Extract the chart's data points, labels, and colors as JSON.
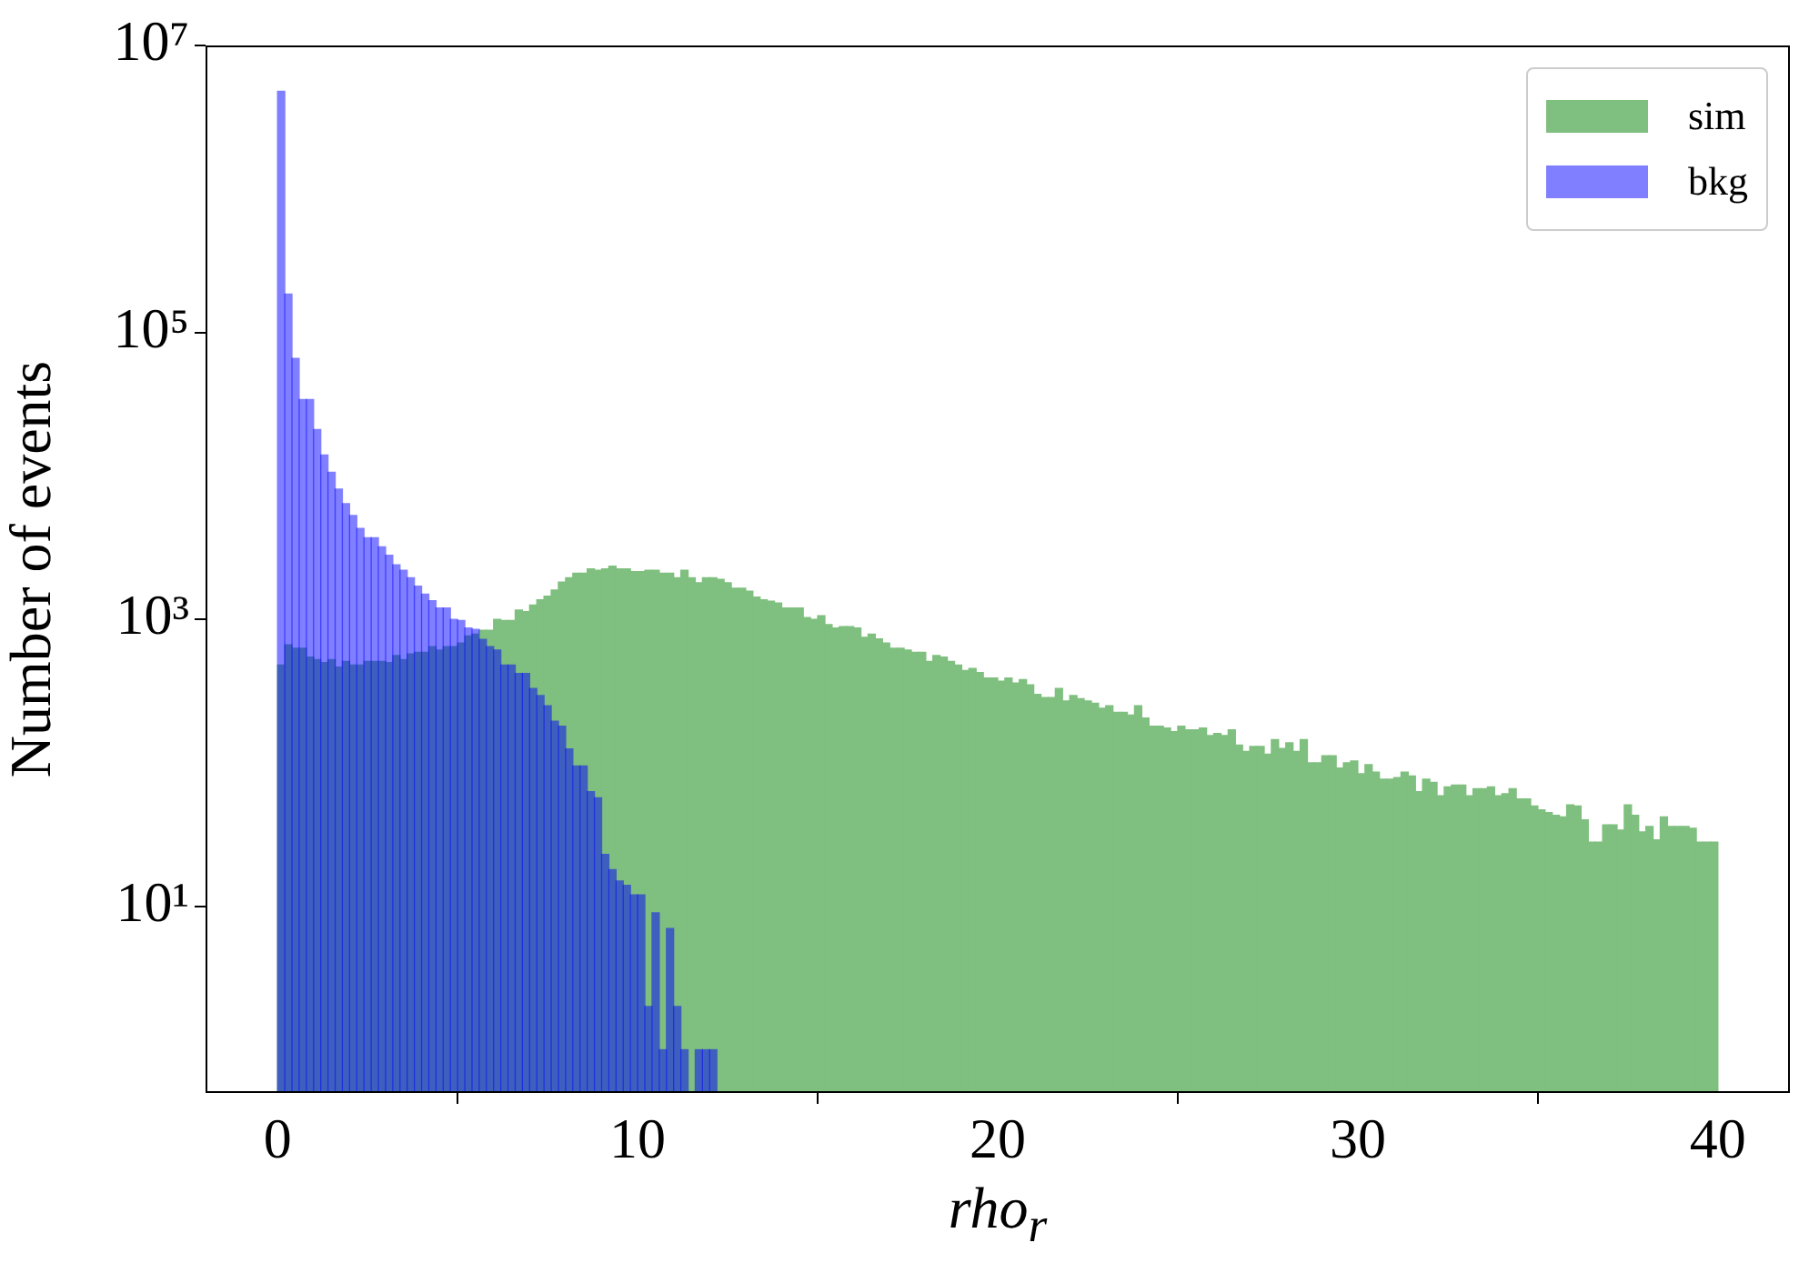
{
  "chart_data": {
    "type": "histogram",
    "xlabel": "rho$_{r}$",
    "ylabel": "Number of events",
    "log": "y",
    "legend": "top right",
    "xlim": [
      -2,
      42
    ],
    "xticks": [
      0,
      10,
      20,
      30,
      40
    ],
    "ylim": [
      0.5,
      10000000
    ],
    "yticks": [
      {
        "value": 10,
        "label": "10¹"
      },
      {
        "value": 1000,
        "label": "10³"
      },
      {
        "value": 100000,
        "label": "10⁵"
      },
      {
        "value": 10000000,
        "label": "10⁷"
      }
    ],
    "bins": [
      0,
      0.2,
      0.4,
      0.6,
      0.8,
      1,
      1.2,
      1.4,
      1.6,
      1.8,
      2,
      2.2,
      2.4,
      2.6,
      2.8,
      3,
      3.2,
      3.4,
      3.6,
      3.8,
      4,
      4.2,
      4.4,
      4.6,
      4.8,
      5,
      5.2,
      5.4,
      5.6,
      5.8,
      6,
      6.2,
      6.4,
      6.6,
      6.8,
      7,
      7.2,
      7.4,
      7.6,
      7.8,
      8,
      8.2,
      8.4,
      8.6,
      8.8,
      9,
      9.2,
      9.4,
      9.6,
      9.8,
      10,
      10.2,
      10.4,
      10.6,
      10.8,
      11,
      11.2,
      11.4,
      11.6,
      11.8,
      12,
      12.2,
      12.4,
      12.6,
      12.8,
      13,
      13.2,
      13.4,
      13.6,
      13.8,
      14,
      14.2,
      14.4,
      14.6,
      14.8,
      15,
      15.2,
      15.4,
      15.6,
      15.8,
      16,
      16.2,
      16.4,
      16.6,
      16.8,
      17,
      17.2,
      17.4,
      17.6,
      17.8,
      18,
      18.2,
      18.4,
      18.6,
      18.8,
      19,
      19.2,
      19.4,
      19.6,
      19.8,
      20,
      20.2,
      20.4,
      20.6,
      20.8,
      21,
      21.2,
      21.4,
      21.6,
      21.8,
      22,
      22.2,
      22.4,
      22.6,
      22.8,
      23,
      23.2,
      23.4,
      23.6,
      23.8,
      24,
      24.2,
      24.4,
      24.6,
      24.8,
      25,
      25.2,
      25.4,
      25.6,
      25.8,
      26,
      26.2,
      26.4,
      26.6,
      26.8,
      27,
      27.2,
      27.4,
      27.6,
      27.8,
      28,
      28.2,
      28.4,
      28.6,
      28.8,
      29,
      29.2,
      29.4,
      29.6,
      29.8,
      30,
      30.2,
      30.4,
      30.6,
      30.8,
      31,
      31.2,
      31.4,
      31.6,
      31.8,
      32,
      32.2,
      32.4,
      32.6,
      32.8,
      33,
      33.2,
      33.4,
      33.6,
      33.8,
      34,
      34.2,
      34.4,
      34.6,
      34.8,
      35,
      35.2,
      35.4,
      35.6,
      35.8,
      36,
      36.2,
      36.4,
      36.6,
      36.8,
      37,
      37.2,
      37.4,
      37.6,
      37.8,
      38,
      38.2,
      38.4,
      38.6,
      38.8,
      39,
      39.2,
      39.4,
      39.6,
      39.8,
      40
    ],
    "series": [
      {
        "name": "sim",
        "color": "#7fbf7f",
        "values": [
          480,
          665,
          630,
          630,
          545,
          525,
          500,
          525,
          465,
          510,
          480,
          480,
          510,
          510,
          510,
          500,
          560,
          525,
          575,
          590,
          590,
          645,
          610,
          645,
          645,
          685,
          765,
          790,
          840,
          840,
          1000,
          980,
          980,
          1160,
          1130,
          1260,
          1370,
          1450,
          1600,
          1820,
          1950,
          2100,
          2100,
          2250,
          2200,
          2250,
          2350,
          2250,
          2250,
          2150,
          2150,
          2200,
          2200,
          2100,
          2100,
          1950,
          2200,
          1950,
          1800,
          1950,
          1950,
          1900,
          1800,
          1650,
          1650,
          1570,
          1430,
          1370,
          1340,
          1300,
          1200,
          1200,
          1200,
          1030,
          1000,
          1060,
          920,
          870,
          890,
          890,
          870,
          750,
          790,
          730,
          685,
          630,
          630,
          610,
          590,
          590,
          510,
          560,
          545,
          510,
          480,
          440,
          455,
          425,
          390,
          390,
          370,
          390,
          360,
          380,
          350,
          300,
          285,
          285,
          330,
          270,
          295,
          280,
          270,
          260,
          240,
          250,
          225,
          225,
          215,
          250,
          205,
          180,
          180,
          175,
          165,
          180,
          170,
          170,
          175,
          155,
          160,
          155,
          170,
          133,
          120,
          130,
          130,
          115,
          145,
          126,
          138,
          120,
          145,
          100,
          100,
          112,
          112,
          92,
          100,
          103,
          84,
          97,
          86,
          77,
          77,
          79,
          86,
          81,
          63,
          77,
          73,
          59,
          68,
          70,
          70,
          59,
          66,
          66,
          68,
          59,
          61,
          66,
          56,
          56,
          50,
          47,
          45,
          43,
          42,
          51,
          50,
          40,
          28,
          28,
          37,
          37,
          34,
          51,
          43,
          33,
          36,
          29,
          42,
          36,
          36,
          36,
          35,
          28,
          28,
          28
        ]
      },
      {
        "name": "bkg",
        "color": "#7f7fff",
        "values": [
          4800000,
          185000,
          66000,
          34000,
          34000,
          21000,
          14000,
          10600,
          8100,
          6400,
          5300,
          4300,
          3700,
          3700,
          3200,
          2800,
          2400,
          2200,
          1950,
          1700,
          1500,
          1350,
          1200,
          1200,
          1000,
          980,
          870,
          850,
          725,
          645,
          610,
          480,
          480,
          420,
          420,
          330,
          295,
          250,
          195,
          180,
          125,
          95,
          95,
          63,
          57,
          23,
          18,
          15,
          14,
          12,
          12,
          2,
          9,
          1,
          7,
          2,
          1,
          null,
          1,
          1,
          1,
          null,
          null,
          null,
          null,
          null,
          null,
          null,
          null,
          null,
          null,
          null,
          null,
          null,
          null,
          null,
          null,
          null,
          null,
          null,
          null,
          null,
          null,
          null,
          null,
          null,
          null,
          null,
          null,
          null,
          null,
          null,
          null,
          null,
          null,
          null,
          null,
          null,
          null,
          null,
          null,
          null,
          null,
          null,
          null,
          null,
          null,
          null,
          null,
          null,
          null,
          null,
          null,
          null,
          null,
          null,
          null,
          null,
          null,
          null,
          null,
          null,
          null,
          null,
          null,
          null,
          null,
          null,
          null,
          null,
          null,
          null,
          null,
          null,
          null,
          null,
          null,
          null,
          null,
          null,
          null,
          null,
          null,
          null,
          null,
          null,
          null,
          null,
          null,
          null,
          null,
          null,
          null,
          null,
          null,
          null,
          null,
          null,
          null,
          null,
          null,
          null,
          null,
          null,
          null,
          null,
          null,
          null,
          null,
          null,
          null,
          null,
          null,
          null,
          null,
          null,
          null,
          null,
          null,
          null,
          null,
          null,
          null,
          null,
          null,
          null,
          null,
          null,
          null,
          null,
          null,
          null,
          null,
          null,
          null,
          null,
          null,
          null,
          null,
          null
        ]
      }
    ]
  }
}
